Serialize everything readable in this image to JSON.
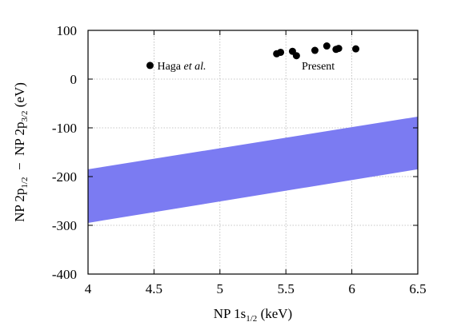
{
  "chart_data": {
    "type": "scatter",
    "title": "",
    "xlabel": {
      "prefix": "NP 1s",
      "sub": "1/2",
      "suffix": " (keV)"
    },
    "ylabel": {
      "part1": "NP 2p",
      "sub1": "1/2",
      "sep": "  −  ",
      "part2": "NP 2p",
      "sub2": "3/2",
      "suffix": " (eV)"
    },
    "xlim": [
      4,
      6.5
    ],
    "ylim": [
      -400,
      100
    ],
    "xticks": [
      4,
      4.5,
      5,
      5.5,
      6,
      6.5
    ],
    "xtick_labels": [
      "4",
      "4.5",
      "5",
      "5.5",
      "6",
      "6.5"
    ],
    "yticks": [
      -400,
      -300,
      -200,
      -100,
      0,
      100
    ],
    "ytick_labels": [
      "-400",
      "-300",
      "-200",
      "-100",
      "0",
      "100"
    ],
    "grid": true,
    "band": {
      "color": "#7b7bf2",
      "lower": [
        [
          4,
          -295
        ],
        [
          6.5,
          -185
        ]
      ],
      "upper": [
        [
          4,
          -185
        ],
        [
          6.5,
          -77
        ]
      ]
    },
    "series": [
      {
        "name": "Haga et al.",
        "name_main": "Haga ",
        "name_italic": "et al.",
        "color": "#000000",
        "points": [
          [
            4.47,
            28
          ]
        ]
      },
      {
        "name": "Present",
        "color": "#000000",
        "points": [
          [
            5.43,
            52
          ],
          [
            5.46,
            55
          ],
          [
            5.55,
            57
          ],
          [
            5.58,
            48
          ],
          [
            5.72,
            59
          ],
          [
            5.81,
            68
          ],
          [
            5.88,
            61
          ],
          [
            5.9,
            63
          ],
          [
            6.03,
            62
          ]
        ]
      }
    ]
  }
}
